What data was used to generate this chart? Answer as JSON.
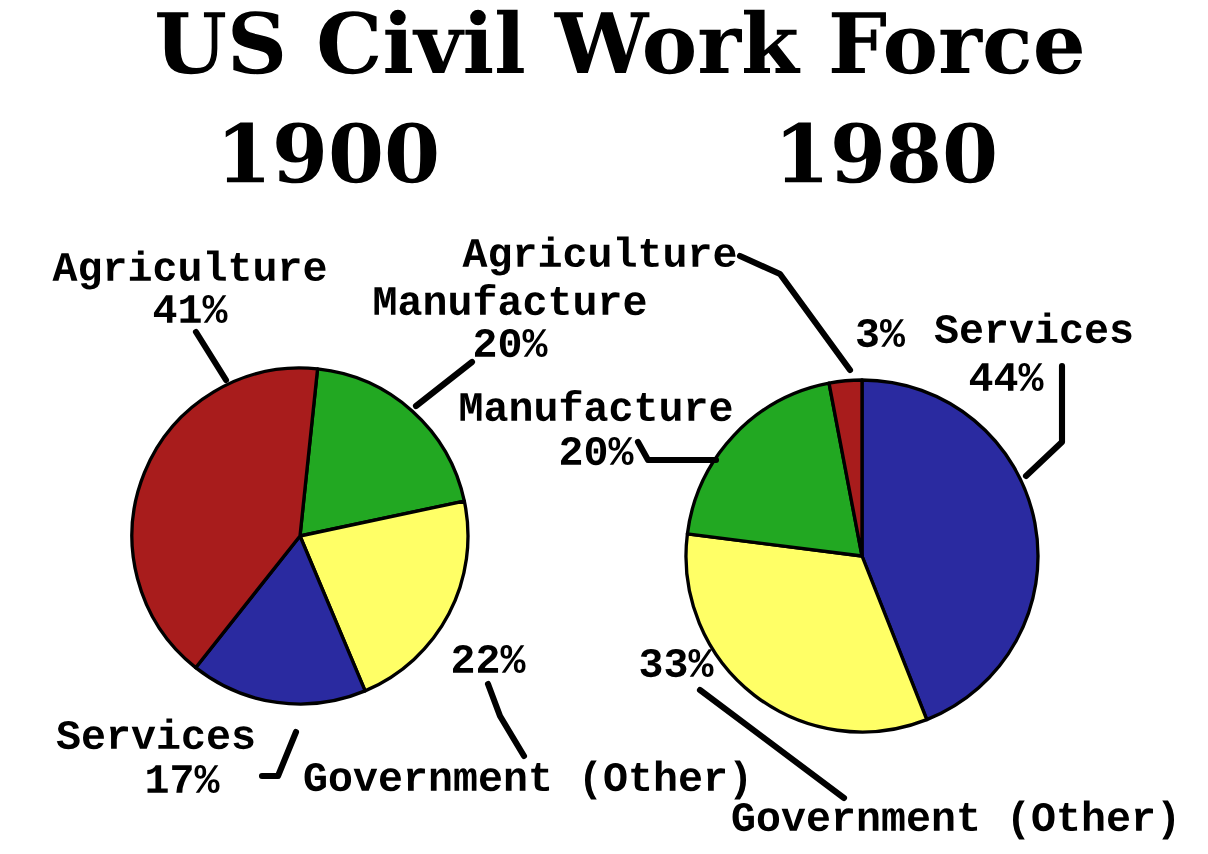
{
  "chart_data": [
    {
      "type": "pie",
      "title": "US Civil Work Force",
      "subtitle": "1900",
      "categories": [
        "Manufacture",
        "Government (Other)",
        "Services",
        "Agriculture"
      ],
      "values": [
        20,
        22,
        17,
        41
      ],
      "colors": [
        "#22a822",
        "#ffff66",
        "#2a2aa0",
        "#a81c1c"
      ],
      "value_labels": [
        "20%",
        "22%",
        "17%",
        "41%"
      ]
    },
    {
      "type": "pie",
      "subtitle": "1980",
      "categories": [
        "Services",
        "Government (Other)",
        "Manufacture",
        "Agriculture"
      ],
      "values": [
        44,
        33,
        20,
        3
      ],
      "colors": [
        "#2a2aa0",
        "#ffff66",
        "#22a822",
        "#a81c1c"
      ],
      "value_labels": [
        "44%",
        "33%",
        "20%",
        "3%"
      ]
    }
  ]
}
